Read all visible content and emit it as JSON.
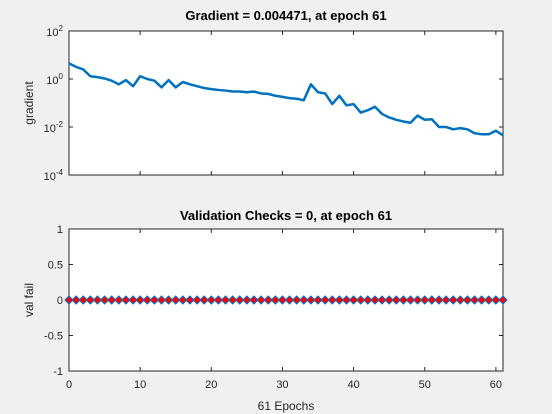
{
  "chart_data": [
    {
      "type": "line",
      "title": "Gradient = 0.004471, at epoch 61",
      "xlabel": "",
      "ylabel": "gradient",
      "yscale": "log",
      "xlim": [
        0,
        61
      ],
      "ylim": [
        0.0001,
        100
      ],
      "grid": false,
      "color": "#0072bd",
      "x_ticks": [
        0,
        10,
        20,
        30,
        40,
        50,
        60
      ],
      "y_ticks": [
        {
          "value": 100,
          "base": "10",
          "exp": "2"
        },
        {
          "value": 1,
          "base": "10",
          "exp": "0"
        },
        {
          "value": 0.01,
          "base": "10",
          "exp": "-2"
        },
        {
          "value": 0.0001,
          "base": "10",
          "exp": "-4"
        }
      ],
      "x": [
        0,
        1,
        2,
        3,
        4,
        5,
        6,
        7,
        8,
        9,
        10,
        11,
        12,
        13,
        14,
        15,
        16,
        17,
        18,
        19,
        20,
        21,
        22,
        23,
        24,
        25,
        26,
        27,
        28,
        29,
        30,
        31,
        32,
        33,
        34,
        35,
        36,
        37,
        38,
        39,
        40,
        41,
        42,
        43,
        44,
        45,
        46,
        47,
        48,
        49,
        50,
        51,
        52,
        53,
        54,
        55,
        56,
        57,
        58,
        59,
        60,
        61
      ],
      "y": [
        4.5,
        3.2,
        2.5,
        1.3,
        1.2,
        1.05,
        0.85,
        0.6,
        0.9,
        0.5,
        1.3,
        1.0,
        0.85,
        0.45,
        0.9,
        0.45,
        0.75,
        0.6,
        0.5,
        0.42,
        0.38,
        0.35,
        0.33,
        0.3,
        0.3,
        0.28,
        0.3,
        0.25,
        0.24,
        0.2,
        0.18,
        0.16,
        0.15,
        0.13,
        0.6,
        0.28,
        0.25,
        0.09,
        0.2,
        0.08,
        0.09,
        0.04,
        0.05,
        0.07,
        0.035,
        0.025,
        0.02,
        0.017,
        0.015,
        0.03,
        0.02,
        0.021,
        0.01,
        0.01,
        0.008,
        0.009,
        0.008,
        0.0055,
        0.005,
        0.005,
        0.007,
        0.004471
      ]
    },
    {
      "type": "line",
      "title": "Validation Checks = 0, at epoch 61",
      "xlabel": "61 Epochs",
      "ylabel": "val fail",
      "xlim": [
        0,
        61
      ],
      "ylim": [
        -1,
        1
      ],
      "grid": false,
      "line_color": "#0072bd",
      "marker": "diamond",
      "marker_face": "#ff0000",
      "x_ticks": [
        0,
        10,
        20,
        30,
        40,
        50,
        60
      ],
      "y_ticks": [
        {
          "value": 1,
          "label": "1"
        },
        {
          "value": 0.5,
          "label": "0.5"
        },
        {
          "value": 0,
          "label": "0"
        },
        {
          "value": -0.5,
          "label": "-0.5"
        },
        {
          "value": -1,
          "label": "-1"
        }
      ],
      "x": [
        0,
        1,
        2,
        3,
        4,
        5,
        6,
        7,
        8,
        9,
        10,
        11,
        12,
        13,
        14,
        15,
        16,
        17,
        18,
        19,
        20,
        21,
        22,
        23,
        24,
        25,
        26,
        27,
        28,
        29,
        30,
        31,
        32,
        33,
        34,
        35,
        36,
        37,
        38,
        39,
        40,
        41,
        42,
        43,
        44,
        45,
        46,
        47,
        48,
        49,
        50,
        51,
        52,
        53,
        54,
        55,
        56,
        57,
        58,
        59,
        60,
        61
      ],
      "y": [
        0,
        0,
        0,
        0,
        0,
        0,
        0,
        0,
        0,
        0,
        0,
        0,
        0,
        0,
        0,
        0,
        0,
        0,
        0,
        0,
        0,
        0,
        0,
        0,
        0,
        0,
        0,
        0,
        0,
        0,
        0,
        0,
        0,
        0,
        0,
        0,
        0,
        0,
        0,
        0,
        0,
        0,
        0,
        0,
        0,
        0,
        0,
        0,
        0,
        0,
        0,
        0,
        0,
        0,
        0,
        0,
        0,
        0,
        0,
        0,
        0,
        0
      ]
    }
  ]
}
